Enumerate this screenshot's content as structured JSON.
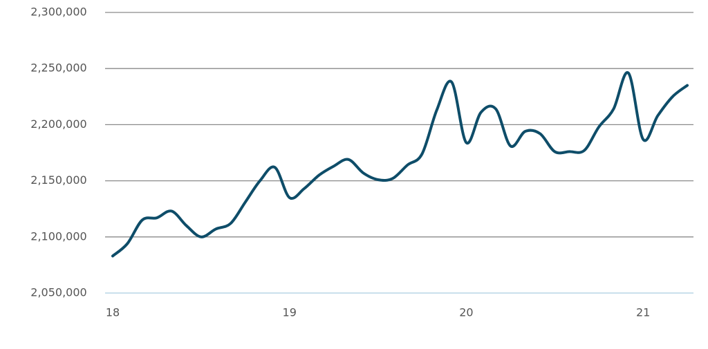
{
  "chart_data": {
    "type": "line",
    "x": [
      18,
      18.083,
      18.167,
      18.25,
      18.333,
      18.417,
      18.5,
      18.583,
      18.667,
      18.75,
      18.833,
      18.917,
      19,
      19.083,
      19.167,
      19.25,
      19.333,
      19.417,
      19.5,
      19.583,
      19.667,
      19.75,
      19.833,
      19.917,
      20,
      20.083,
      20.167,
      20.25,
      20.333,
      20.417,
      20.5,
      20.583,
      20.667,
      20.75,
      20.833,
      20.917,
      21,
      21.083,
      21.167,
      21.25
    ],
    "series": [
      {
        "color": "#0e4d69",
        "values": [
          2083000,
          2094000,
          2115000,
          2117000,
          2123000,
          2110000,
          2100000,
          2107000,
          2112000,
          2131000,
          2150000,
          2162000,
          2135000,
          2143000,
          2155000,
          2163000,
          2169000,
          2157000,
          2151000,
          2152000,
          2164000,
          2174000,
          2213000,
          2238000,
          2184000,
          2211000,
          2214000,
          2181000,
          2194000,
          2192000,
          2176000,
          2176000,
          2177000,
          2198000,
          2214000,
          2246000,
          2187000,
          2208000,
          2225000,
          2235000
        ]
      }
    ],
    "xlim": [
      17.957,
      21.285
    ],
    "xticks": [
      18,
      19,
      20,
      21
    ],
    "ylim": [
      2050000,
      2300000
    ],
    "yticks": [
      {
        "value": 2050000,
        "label": "2,050,000"
      },
      {
        "value": 2100000,
        "label": "2,100,000"
      },
      {
        "value": 2150000,
        "label": "2,150,000"
      },
      {
        "value": 2200000,
        "label": "2,200,000"
      },
      {
        "value": 2250000,
        "label": "2,250,000"
      },
      {
        "value": 2300000,
        "label": "2,300,000"
      }
    ],
    "grid": true
  }
}
